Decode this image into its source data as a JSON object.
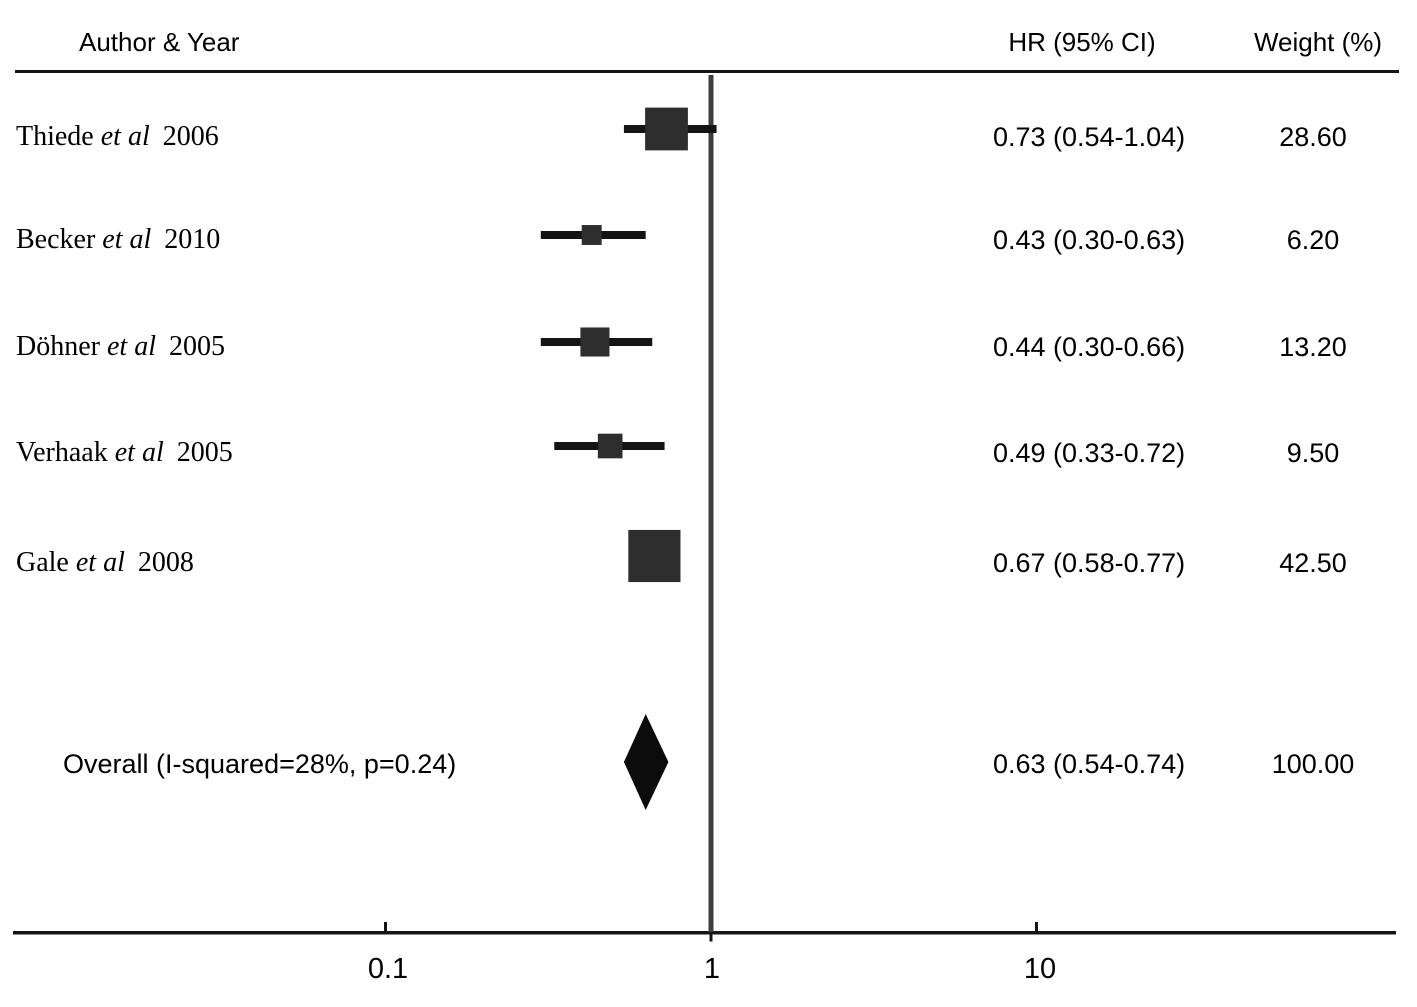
{
  "header": {
    "author_col": "Author & Year",
    "hr_col": "HR (95% CI)",
    "weight_col": "Weight (%)"
  },
  "chart_data": {
    "type": "forest",
    "title": "",
    "xlabel": "",
    "x_axis": {
      "scale": "log10",
      "ticks": [
        "0.1",
        "1",
        "10"
      ],
      "tick_values": [
        0.1,
        1,
        10
      ],
      "range": [
        0.07,
        60
      ],
      "reference_line": 1,
      "grid": false
    },
    "columns": [
      "Author & Year",
      "HR (95% CI)",
      "Weight (%)"
    ],
    "studies": [
      {
        "author": "Thiede",
        "etal": "et al",
        "year": "2006",
        "hr": 0.73,
        "ci_low": 0.54,
        "ci_high": 1.04,
        "weight": 28.6,
        "hr_text": "0.73 (0.54-1.04)",
        "weight_text": "28.60"
      },
      {
        "author": "Becker",
        "etal": "et al",
        "year": "2010",
        "hr": 0.43,
        "ci_low": 0.3,
        "ci_high": 0.63,
        "weight": 6.2,
        "hr_text": "0.43 (0.30-0.63)",
        "weight_text": "6.20"
      },
      {
        "author": "Döhner",
        "etal": "et al",
        "year": "2005",
        "hr": 0.44,
        "ci_low": 0.3,
        "ci_high": 0.66,
        "weight": 13.2,
        "hr_text": "0.44 (0.30-0.66)",
        "weight_text": "13.20"
      },
      {
        "author": "Verhaak",
        "etal": "et al",
        "year": "2005",
        "hr": 0.49,
        "ci_low": 0.33,
        "ci_high": 0.72,
        "weight": 9.5,
        "hr_text": "0.49 (0.33-0.72)",
        "weight_text": "9.50"
      },
      {
        "author": "Gale",
        "etal": "et al",
        "year": "2008",
        "hr": 0.67,
        "ci_low": 0.58,
        "ci_high": 0.77,
        "weight": 42.5,
        "hr_text": "0.67 (0.58-0.77)",
        "weight_text": "42.50"
      }
    ],
    "overall": {
      "label": "Overall  (I-squared=28%, p=0.24)",
      "hr": 0.63,
      "ci_low": 0.54,
      "ci_high": 0.74,
      "weight": 100.0,
      "hr_text": "0.63 (0.54-0.74)",
      "weight_text": "100.00"
    }
  },
  "colors": {
    "marker": "#2e2e2e",
    "line": "#141414",
    "diamond": "#0c0c0c",
    "ref_line": "#3e3e3e",
    "text": "#000000"
  }
}
